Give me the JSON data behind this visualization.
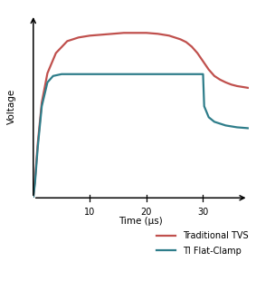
{
  "title": "",
  "xlabel": "Time (μs)",
  "ylabel": "Voltage",
  "xticks": [
    10,
    20,
    30
  ],
  "xlim": [
    0,
    38
  ],
  "ylim": [
    0,
    1.0
  ],
  "traditional_tvs_color": "#c0504d",
  "flat_clamp_color": "#2e7d8a",
  "line_width": 1.6,
  "legend_labels": [
    "Traditional TVS",
    "TI Flat-Clamp"
  ],
  "background_color": "#ffffff",
  "tvs_t": [
    0,
    0.3,
    0.8,
    1.5,
    2.5,
    4.0,
    6.0,
    8.0,
    10.0,
    12.0,
    14.0,
    16.0,
    18.0,
    20.0,
    22.0,
    24.0,
    26.0,
    27.0,
    28.0,
    29.0,
    30.0,
    31.0,
    32.0,
    33.0,
    34.0,
    35.0,
    36.0,
    37.0,
    38.0
  ],
  "tvs_v": [
    0,
    0.1,
    0.3,
    0.52,
    0.68,
    0.79,
    0.855,
    0.875,
    0.885,
    0.89,
    0.895,
    0.9,
    0.9,
    0.9,
    0.895,
    0.885,
    0.865,
    0.85,
    0.825,
    0.79,
    0.745,
    0.7,
    0.665,
    0.645,
    0.63,
    0.618,
    0.61,
    0.605,
    0.6
  ],
  "fc_t": [
    0,
    0.3,
    0.8,
    1.5,
    2.5,
    3.5,
    5.0,
    28.0,
    29.0,
    29.5,
    29.8,
    30.0,
    30.2,
    31.0,
    32.0,
    34.0,
    36.0,
    38.0
  ],
  "fc_v": [
    0,
    0.08,
    0.28,
    0.5,
    0.63,
    0.665,
    0.675,
    0.675,
    0.675,
    0.675,
    0.675,
    0.675,
    0.5,
    0.44,
    0.415,
    0.395,
    0.385,
    0.38
  ]
}
